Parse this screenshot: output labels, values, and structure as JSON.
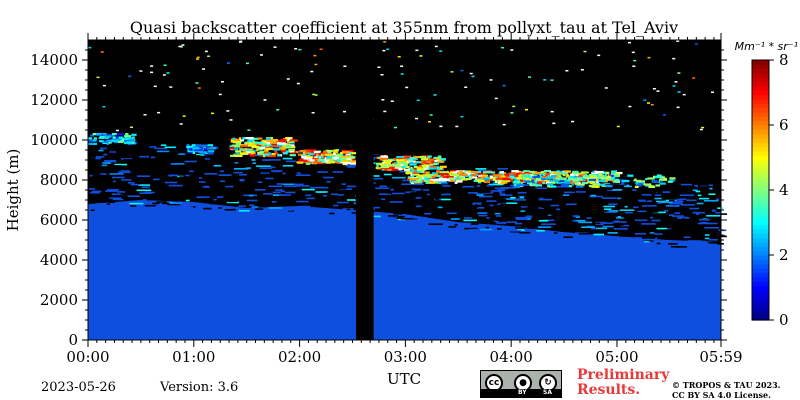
{
  "chart_data": {
    "type": "heatmap",
    "title": "Quasi backscatter coefficient at 355nm from pollyxt_tau at Tel_Aviv",
    "xlabel": "UTC",
    "ylabel": "Height (m)",
    "x_ticks": [
      "00:00",
      "01:00",
      "02:00",
      "03:00",
      "04:00",
      "05:00",
      "05:59"
    ],
    "x_tick_minutes": [
      0,
      60,
      120,
      180,
      240,
      300,
      359
    ],
    "xlim_minutes": [
      0,
      359
    ],
    "y_ticks": [
      0,
      2000,
      4000,
      6000,
      8000,
      10000,
      12000,
      14000
    ],
    "ylim": [
      0,
      15000
    ],
    "colorbar": {
      "label": "Mm⁻¹ * sr⁻¹",
      "ticks": [
        0,
        2,
        4,
        6,
        8
      ],
      "range": [
        0,
        8
      ],
      "colormap": "jet"
    },
    "no_data_gap_minutes": [
      152,
      162
    ],
    "background_color": "#000000",
    "near_zero_color": "#0f4fe0",
    "layers": [
      {
        "feature": "lower tropospheric signal",
        "top_height_m": [
          6800,
          7000,
          6900,
          6600,
          6700,
          6500,
          6300,
          5900,
          5700,
          5400,
          5200,
          5000,
          4900
        ]
      },
      {
        "feature": "cloud layer",
        "height_range_m": [
          7800,
          10200
        ],
        "time_range_minutes": [
          0,
          330
        ],
        "peak_value": 8
      }
    ]
  },
  "footer": {
    "date": "2023-05-26",
    "version": "Version: 3.6",
    "preliminary_line1": "Preliminary",
    "preliminary_line2": "Results.",
    "copyright_line1": "© TROPOS & TAU 2023.",
    "copyright_line2": "CC BY SA 4.0 License.",
    "license_badge": {
      "icons": [
        "cc-icon",
        "by-icon",
        "sa-icon"
      ],
      "labels": [
        "BY",
        "SA"
      ]
    }
  }
}
